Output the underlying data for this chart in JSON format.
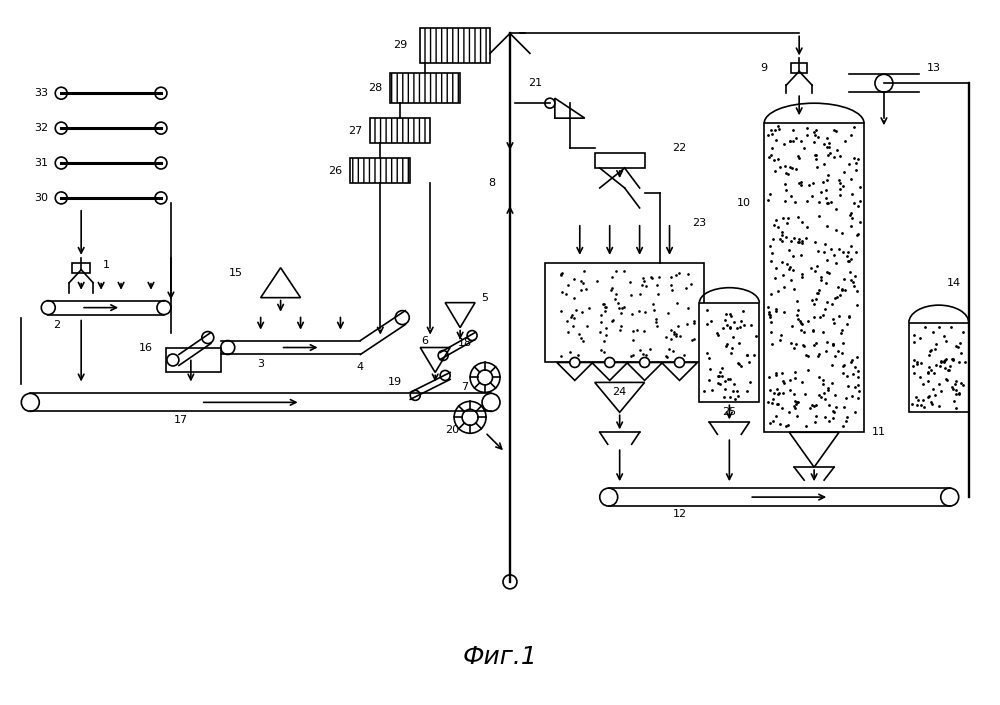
{
  "title": "Фиг.1",
  "bg_color": "#ffffff",
  "line_color": "#000000",
  "title_fontsize": 18,
  "fig_width": 10.0,
  "fig_height": 7.05
}
